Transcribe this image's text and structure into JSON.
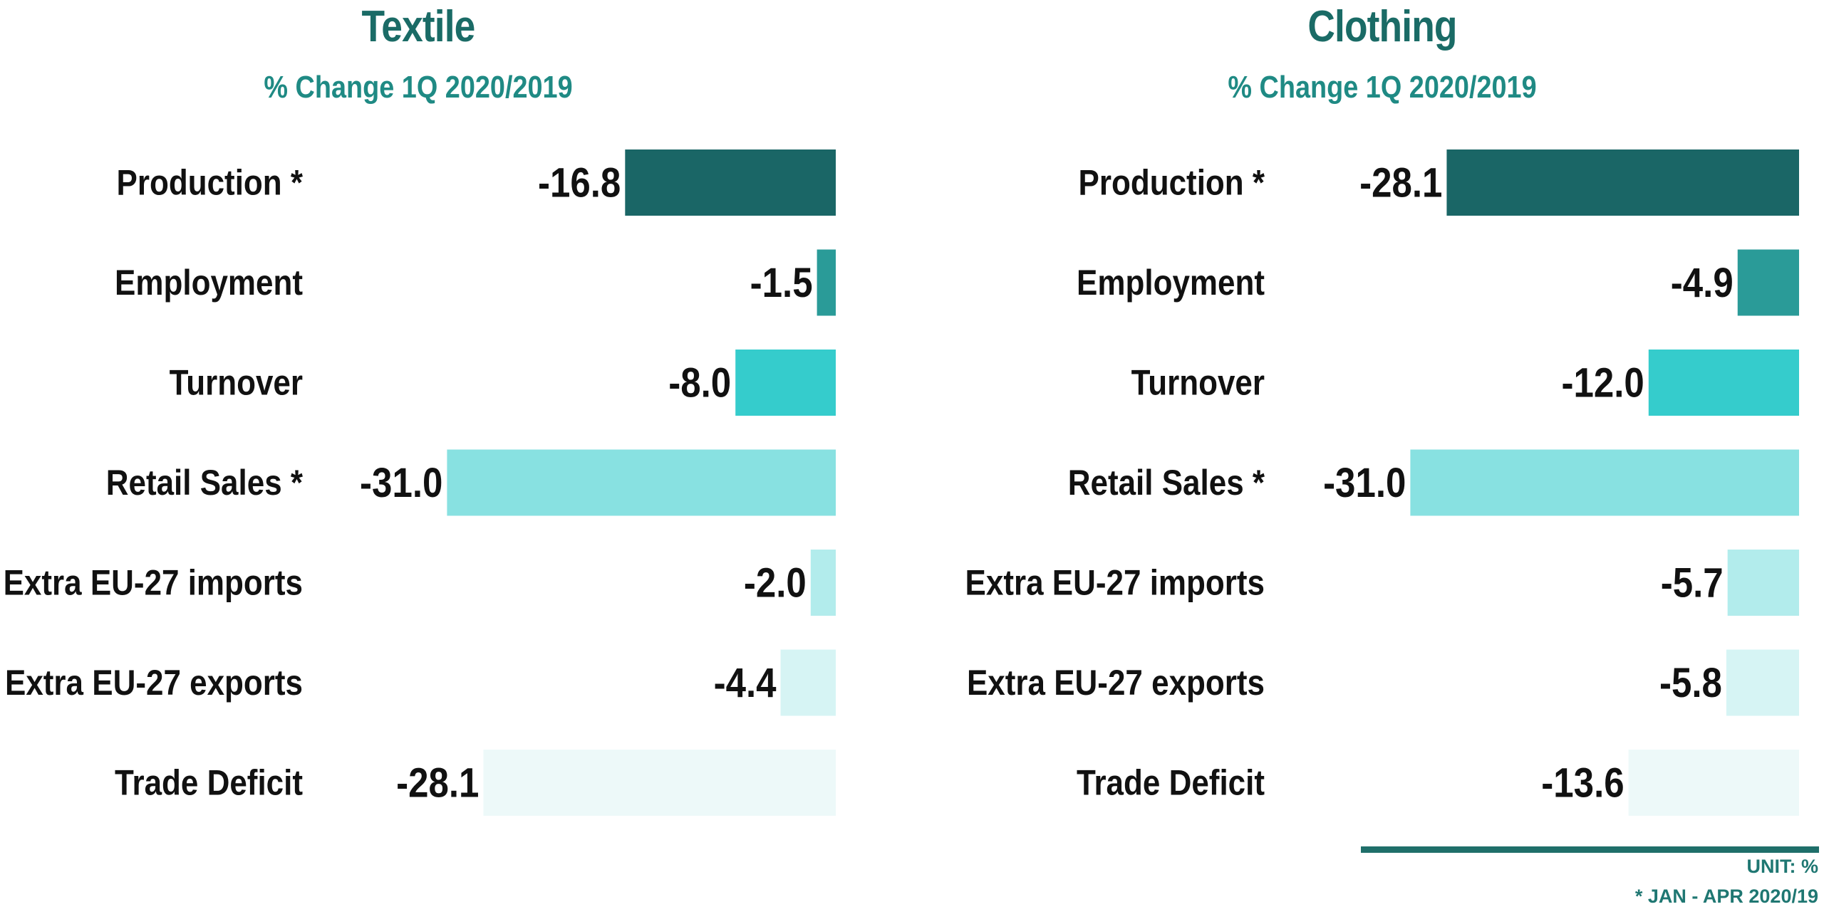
{
  "colors": [
    "#1a6666",
    "#2a9b98",
    "#35cccc",
    "#88e1e1",
    "#b2ecec",
    "#d6f4f4",
    "#edf9f9"
  ],
  "title_color": "#1a6b66",
  "subtitle_color": "#1f8a84",
  "chart_data": [
    {
      "type": "bar",
      "orientation": "horizontal",
      "title": "Textile",
      "subtitle": "% Change 1Q 2020/2019",
      "categories": [
        "Production *",
        "Employment",
        "Turnover",
        "Retail Sales *",
        "Extra EU-27 imports",
        "Extra EU-27 exports",
        "Trade Deficit"
      ],
      "values": [
        -16.8,
        -1.5,
        -8.0,
        -31.0,
        -2.0,
        -4.4,
        -28.1
      ],
      "value_labels": [
        "-16.8",
        "-1.5",
        "-8.0",
        "-31.0",
        "-2.0",
        "-4.4",
        "-28.1"
      ],
      "xlim": [
        -31.0,
        0
      ],
      "grid": false,
      "legend": "none"
    },
    {
      "type": "bar",
      "orientation": "horizontal",
      "title": "Clothing",
      "subtitle": "% Change 1Q 2020/2019",
      "categories": [
        "Production *",
        "Employment",
        "Turnover",
        "Retail Sales *",
        "Extra EU-27 imports",
        "Extra EU-27 exports",
        "Trade Deficit"
      ],
      "values": [
        -28.1,
        -4.9,
        -12.0,
        -31.0,
        -5.7,
        -5.8,
        -13.6
      ],
      "value_labels": [
        "-28.1",
        "-4.9",
        "-12.0",
        "-31.0",
        "-5.7",
        "-5.8",
        "-13.6"
      ],
      "xlim": [
        -31.0,
        0
      ],
      "grid": false,
      "legend": "none"
    }
  ],
  "footnotes": {
    "unit": "UNIT: %",
    "period": "* JAN - APR 2020/19"
  }
}
